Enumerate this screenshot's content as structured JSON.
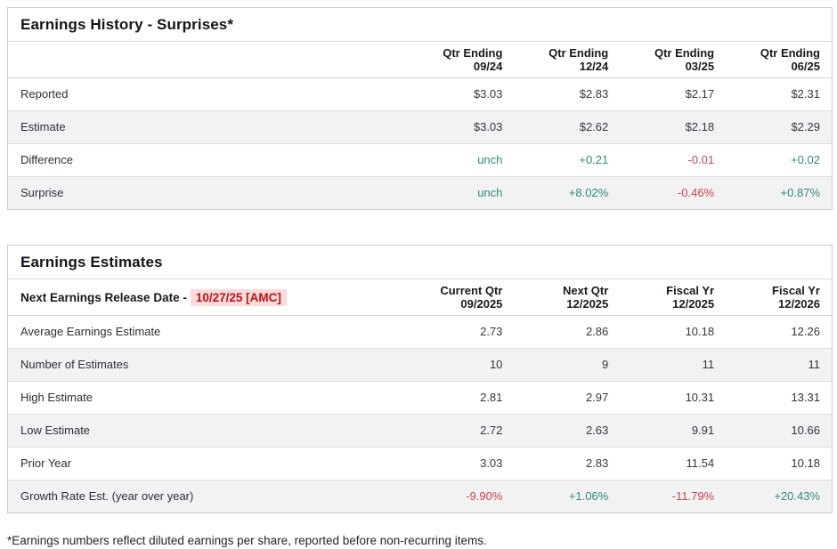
{
  "colors": {
    "positive": "#2e8b74",
    "negative": "#c9454f",
    "release_date_text": "#bf1212",
    "release_date_bg": "#fbdbdb",
    "alt_row_bg": "#f2f2f2",
    "border": "#cbcbcb"
  },
  "history": {
    "title": "Earnings History - Surprises*",
    "columns": [
      {
        "line1": "Qtr Ending",
        "line2": "09/24"
      },
      {
        "line1": "Qtr Ending",
        "line2": "12/24"
      },
      {
        "line1": "Qtr Ending",
        "line2": "03/25"
      },
      {
        "line1": "Qtr Ending",
        "line2": "06/25"
      }
    ],
    "rows": [
      {
        "label": "Reported",
        "values": [
          "$3.03",
          "$2.83",
          "$2.17",
          "$2.31"
        ]
      },
      {
        "label": "Estimate",
        "values": [
          "$3.03",
          "$2.62",
          "$2.18",
          "$2.29"
        ]
      },
      {
        "label": "Difference",
        "values": [
          "unch",
          "+0.21",
          "-0.01",
          "+0.02"
        ]
      },
      {
        "label": "Surprise",
        "values": [
          "unch",
          "+8.02%",
          "-0.46%",
          "+0.87%"
        ]
      }
    ]
  },
  "estimates": {
    "title": "Earnings Estimates",
    "release_label": "Next Earnings Release Date -",
    "release_date": "10/27/25 [AMC]",
    "columns": [
      {
        "line1": "Current Qtr",
        "line2": "09/2025"
      },
      {
        "line1": "Next Qtr",
        "line2": "12/2025"
      },
      {
        "line1": "Fiscal Yr",
        "line2": "12/2025"
      },
      {
        "line1": "Fiscal Yr",
        "line2": "12/2026"
      }
    ],
    "rows": [
      {
        "label": "Average Earnings Estimate",
        "values": [
          "2.73",
          "2.86",
          "10.18",
          "12.26"
        ]
      },
      {
        "label": "Number of Estimates",
        "values": [
          "10",
          "9",
          "11",
          "11"
        ]
      },
      {
        "label": "High Estimate",
        "values": [
          "2.81",
          "2.97",
          "10.31",
          "13.31"
        ]
      },
      {
        "label": "Low Estimate",
        "values": [
          "2.72",
          "2.63",
          "9.91",
          "10.66"
        ]
      },
      {
        "label": "Prior Year",
        "values": [
          "3.03",
          "2.83",
          "11.54",
          "10.18"
        ]
      },
      {
        "label": "Growth Rate Est. (year over year)",
        "values": [
          "-9.90%",
          "+1.06%",
          "-11.79%",
          "+20.43%"
        ]
      }
    ]
  },
  "footnote": "*Earnings numbers reflect diluted earnings per share, reported before non-recurring items."
}
